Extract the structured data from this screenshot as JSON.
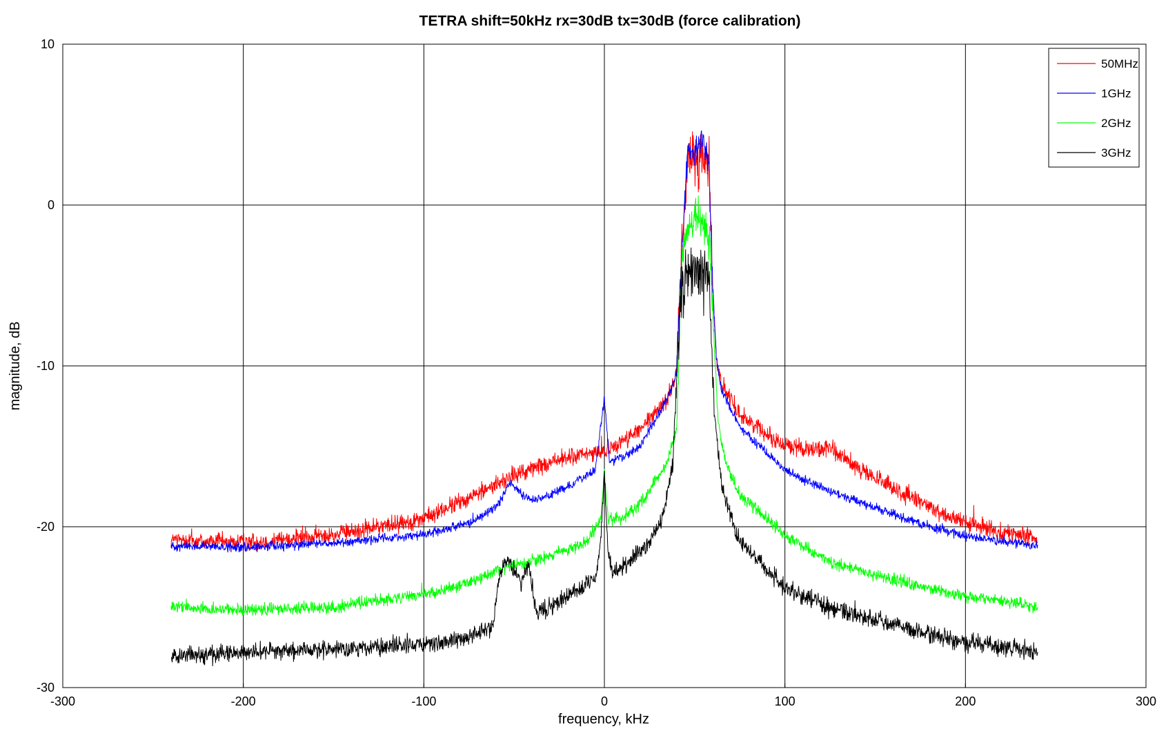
{
  "chart_data": {
    "type": "line",
    "title": "TETRA shift=50kHz rx=30dB tx=30dB (force calibration)",
    "xlabel": "frequency, kHz",
    "ylabel": "magnitude, dB",
    "xlim": [
      -300,
      300
    ],
    "ylim": [
      -30,
      10
    ],
    "xticks": [
      -300,
      -200,
      -100,
      0,
      100,
      200,
      300
    ],
    "yticks": [
      -30,
      -20,
      -10,
      0,
      10
    ],
    "grid": true,
    "legend_position": "top-right",
    "series": [
      {
        "name": "50MHz",
        "color": "#ff0000",
        "x": [
          -240,
          -200,
          -150,
          -100,
          -75,
          -50,
          -25,
          0,
          20,
          35,
          40,
          42,
          46,
          50,
          54,
          58,
          60,
          62,
          65,
          75,
          100,
          125,
          150,
          175,
          200,
          240
        ],
        "y": [
          -20.8,
          -21.0,
          -20.5,
          -19.5,
          -18.2,
          -16.8,
          -15.8,
          -15.3,
          -14.0,
          -12.0,
          -10.5,
          -5.0,
          2.8,
          3.0,
          2.8,
          2.5,
          -5.0,
          -9.5,
          -11.2,
          -13.0,
          -15.0,
          -15.2,
          -17.0,
          -18.5,
          -19.8,
          -20.8
        ],
        "noise": 0.55
      },
      {
        "name": "1GHz",
        "color": "#0000ff",
        "x": [
          -240,
          -200,
          -150,
          -100,
          -75,
          -60,
          -52,
          -45,
          -40,
          -25,
          -5,
          0,
          3,
          10,
          20,
          35,
          40,
          42,
          46,
          50,
          54,
          58,
          60,
          62,
          65,
          75,
          100,
          125,
          150,
          175,
          200,
          240
        ],
        "y": [
          -21.2,
          -21.3,
          -21.0,
          -20.5,
          -19.8,
          -18.8,
          -17.2,
          -18.0,
          -18.4,
          -17.8,
          -16.5,
          -12.0,
          -16.0,
          -15.7,
          -15.0,
          -12.0,
          -10.5,
          -5.0,
          3.5,
          3.2,
          4.5,
          2.5,
          -5.0,
          -9.5,
          -11.5,
          -13.8,
          -16.5,
          -17.8,
          -18.8,
          -19.8,
          -20.6,
          -21.2
        ],
        "noise": 0.28
      },
      {
        "name": "2GHz",
        "color": "#00ff00",
        "x": [
          -240,
          -200,
          -150,
          -100,
          -75,
          -55,
          -35,
          -10,
          -2,
          0,
          2,
          10,
          20,
          35,
          40,
          43,
          47,
          50,
          54,
          58,
          61,
          63,
          67,
          75,
          100,
          125,
          150,
          175,
          200,
          240
        ],
        "y": [
          -25.0,
          -25.2,
          -25.0,
          -24.2,
          -23.5,
          -22.5,
          -22.0,
          -21.0,
          -19.5,
          -16.5,
          -19.5,
          -19.5,
          -18.5,
          -16.0,
          -14.0,
          -3.0,
          -1.2,
          -0.8,
          -1.0,
          -2.0,
          -9.0,
          -13.5,
          -16.0,
          -18.0,
          -20.5,
          -22.2,
          -23.0,
          -23.7,
          -24.3,
          -25.0
        ],
        "noise": 0.38
      },
      {
        "name": "3GHz",
        "color": "#000000",
        "x": [
          -240,
          -200,
          -150,
          -100,
          -80,
          -62,
          -58,
          -54,
          -50,
          -46,
          -42,
          -38,
          -30,
          -15,
          -5,
          -2,
          0,
          2,
          5,
          15,
          25,
          32,
          38,
          42,
          45,
          50,
          55,
          58,
          61,
          65,
          75,
          100,
          125,
          150,
          175,
          200,
          240
        ],
        "y": [
          -28.0,
          -27.8,
          -27.6,
          -27.3,
          -27.0,
          -26.2,
          -23.0,
          -22.0,
          -22.8,
          -23.5,
          -22.2,
          -25.2,
          -25.0,
          -24.0,
          -23.2,
          -21.0,
          -16.5,
          -21.5,
          -23.0,
          -22.0,
          -21.0,
          -19.5,
          -16.0,
          -6.0,
          -4.5,
          -4.0,
          -4.3,
          -5.0,
          -13.0,
          -17.5,
          -21.0,
          -23.8,
          -25.0,
          -25.8,
          -26.5,
          -27.2,
          -27.8
        ],
        "noise": 0.55
      }
    ]
  }
}
